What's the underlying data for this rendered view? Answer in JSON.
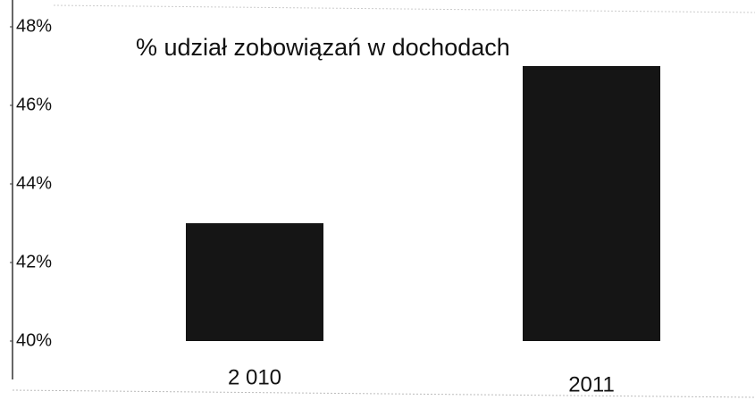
{
  "chart_data": {
    "type": "bar",
    "title": "% udział zobowiązań w dochodach",
    "categories": [
      "2 010",
      "2011"
    ],
    "values": [
      43,
      47
    ],
    "color": "#151515",
    "ylim": [
      40,
      48
    ],
    "yticks": [
      {
        "value": 40,
        "label": "40%"
      },
      {
        "value": 42,
        "label": "42%"
      },
      {
        "value": 44,
        "label": "44%"
      },
      {
        "value": 46,
        "label": "46%"
      },
      {
        "value": 48,
        "label": "48%"
      }
    ]
  }
}
